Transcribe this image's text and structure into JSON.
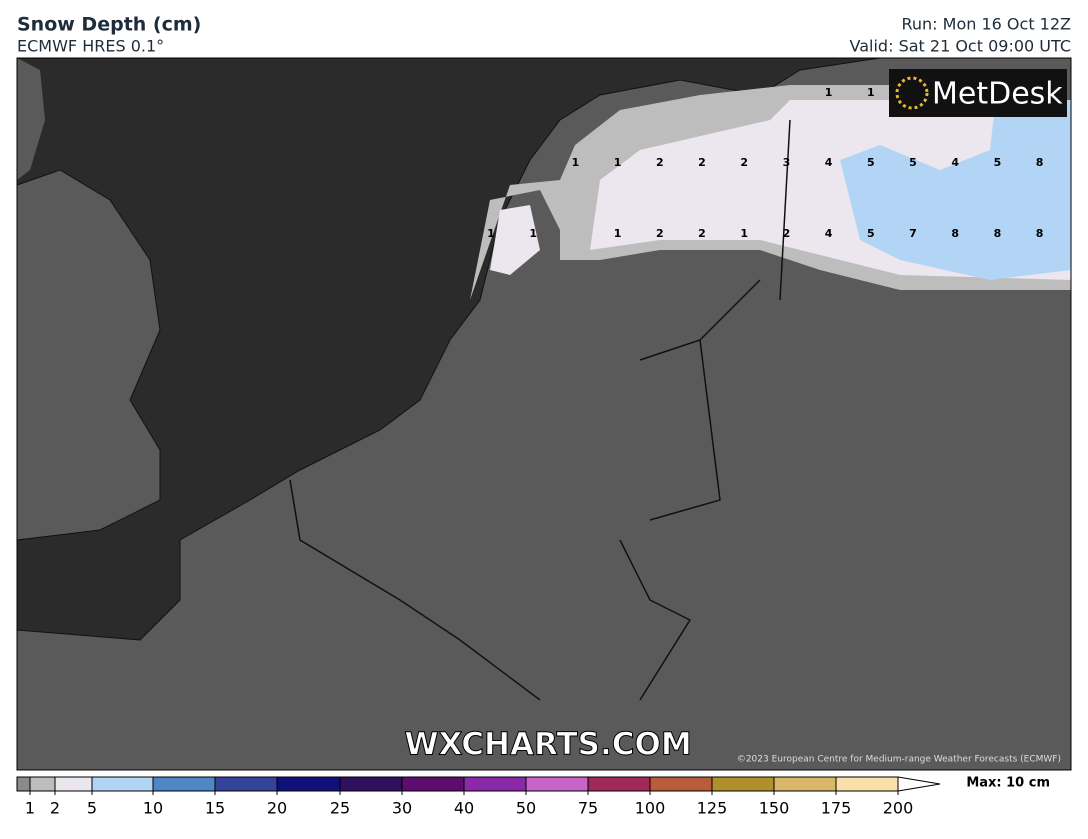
{
  "header": {
    "title": "Snow Depth (cm)",
    "subtitle": "ECMWF HRES 0.1°",
    "run": "Run: Mon 16 Oct 12Z",
    "valid": "Valid: Sat 21 Oct 09:00 UTC"
  },
  "map": {
    "logo": "MetDesk",
    "watermark": "WXCHARTS.COM",
    "copyright": "©2023 European Centre for Medium-range Weather Forecasts (ECMWF)",
    "grid_labels": [
      [
        null,
        null,
        null,
        null,
        null,
        null,
        null,
        null,
        1,
        1,
        null,
        null,
        null,
        null
      ],
      [
        null,
        null,
        1,
        1,
        2,
        2,
        2,
        3,
        4,
        5,
        5,
        4,
        5,
        8
      ],
      [
        1,
        1,
        null,
        1,
        2,
        2,
        1,
        2,
        4,
        5,
        7,
        8,
        8,
        8
      ]
    ]
  },
  "legend": {
    "max": "Max: 10 cm",
    "levels": [
      1,
      2,
      5,
      10,
      15,
      20,
      25,
      30,
      40,
      50,
      75,
      100,
      125,
      150,
      175,
      200
    ],
    "colors": [
      "#bdbdbd",
      "#ece6ee",
      "#b3d5f5",
      "#4f87c4",
      "#33449a",
      "#10107a",
      "#30105e",
      "#5c0d6e",
      "#8a2aa8",
      "#c864c8",
      "#a0285a",
      "#b85c3c",
      "#b0902c",
      "#d8b868",
      "#f8e0a8"
    ],
    "below_color": "#8a8a8a"
  }
}
